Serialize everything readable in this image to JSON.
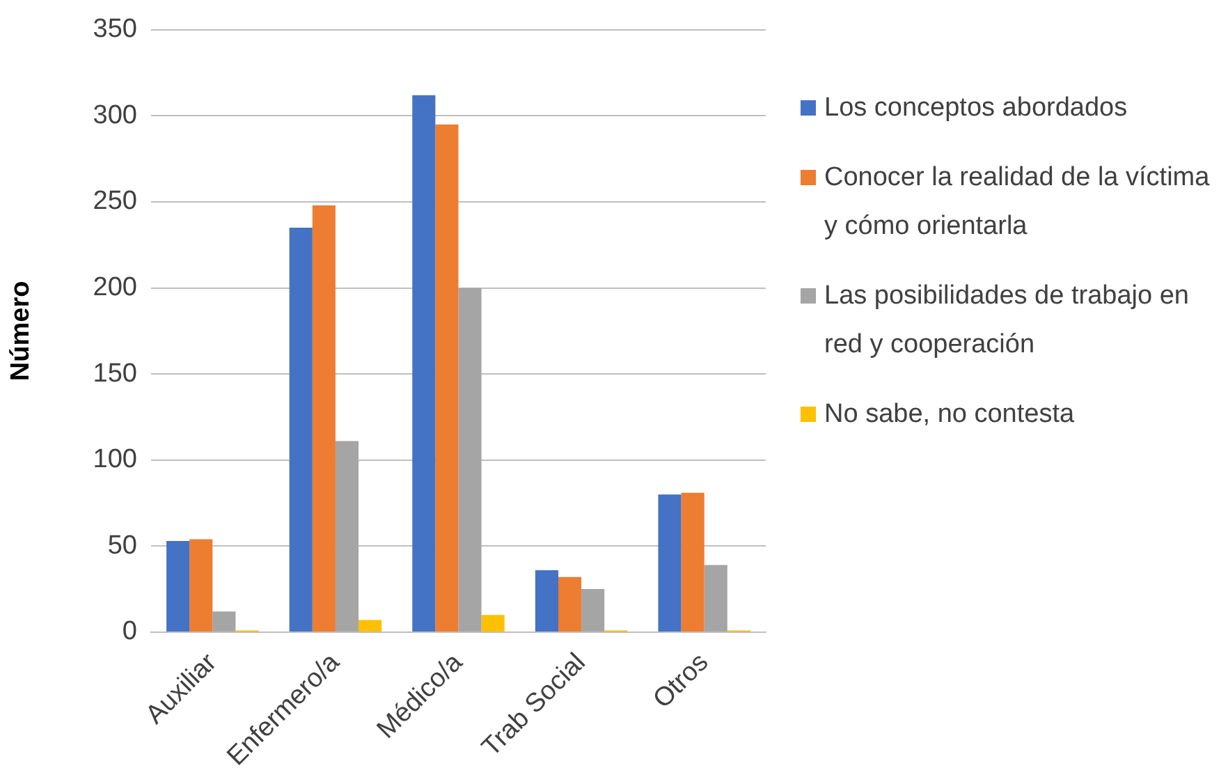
{
  "chart_data": {
    "type": "bar",
    "ylabel": "Número",
    "categories": [
      "Auxiliar",
      "Enfermero/a",
      "Médico/a",
      "Trab Social",
      "Otros"
    ],
    "series": [
      {
        "name": "Los conceptos abordados",
        "color": "#4472c4",
        "values": [
          53,
          235,
          312,
          36,
          80
        ]
      },
      {
        "name": "Conocer la realidad de la víctima y cómo orientarla",
        "color": "#ed7d31",
        "values": [
          54,
          248,
          295,
          32,
          81
        ]
      },
      {
        "name": "Las posibilidades de trabajo en red y cooperación",
        "color": "#a5a5a5",
        "values": [
          12,
          111,
          200,
          25,
          39
        ]
      },
      {
        "name": "No sabe, no contesta",
        "color": "#ffc000",
        "values": [
          1,
          7,
          10,
          1,
          1
        ]
      }
    ],
    "ylim": [
      0,
      350
    ],
    "yticks": [
      0,
      50,
      100,
      150,
      200,
      250,
      300,
      350
    ],
    "grid": "y",
    "legend": "right"
  }
}
